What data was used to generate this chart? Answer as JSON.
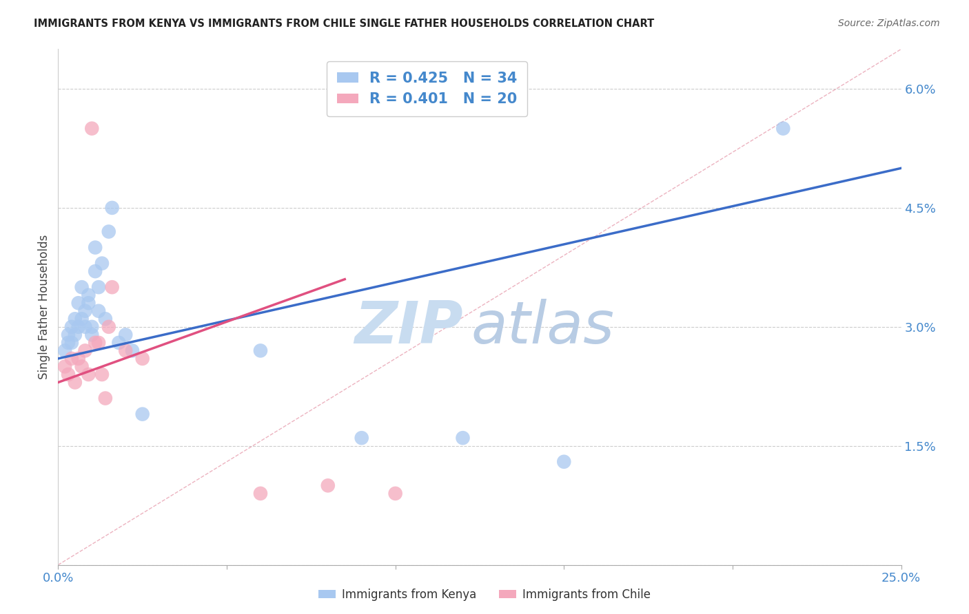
{
  "title": "IMMIGRANTS FROM KENYA VS IMMIGRANTS FROM CHILE SINGLE FATHER HOUSEHOLDS CORRELATION CHART",
  "source": "Source: ZipAtlas.com",
  "ylabel": "Single Father Households",
  "legend_kenya": "Immigrants from Kenya",
  "legend_chile": "Immigrants from Chile",
  "R_kenya": 0.425,
  "N_kenya": 34,
  "R_chile": 0.401,
  "N_chile": 20,
  "xlim": [
    0.0,
    0.25
  ],
  "ylim": [
    0.0,
    0.065
  ],
  "xticks": [
    0.0,
    0.05,
    0.1,
    0.15,
    0.2,
    0.25
  ],
  "xtick_labels": [
    "0.0%",
    "",
    "",
    "",
    "",
    "25.0%"
  ],
  "yticks": [
    0.0,
    0.015,
    0.03,
    0.045,
    0.06
  ],
  "ytick_labels": [
    "",
    "1.5%",
    "3.0%",
    "4.5%",
    "6.0%"
  ],
  "color_kenya": "#A8C8F0",
  "color_chile": "#F4A8BC",
  "line_color_kenya": "#3B6CC8",
  "line_color_chile": "#E05080",
  "tick_color": "#4488CC",
  "watermark_zip": "ZIP",
  "watermark_atlas": "atlas",
  "watermark_color": "#C8DCF0",
  "kenya_x": [
    0.002,
    0.003,
    0.003,
    0.004,
    0.004,
    0.005,
    0.005,
    0.006,
    0.006,
    0.007,
    0.007,
    0.008,
    0.008,
    0.009,
    0.009,
    0.01,
    0.01,
    0.011,
    0.011,
    0.012,
    0.012,
    0.013,
    0.014,
    0.015,
    0.016,
    0.018,
    0.02,
    0.022,
    0.025,
    0.06,
    0.09,
    0.12,
    0.15,
    0.215
  ],
  "kenya_y": [
    0.027,
    0.028,
    0.029,
    0.028,
    0.03,
    0.029,
    0.031,
    0.033,
    0.03,
    0.031,
    0.035,
    0.03,
    0.032,
    0.033,
    0.034,
    0.029,
    0.03,
    0.037,
    0.04,
    0.032,
    0.035,
    0.038,
    0.031,
    0.042,
    0.045,
    0.028,
    0.029,
    0.027,
    0.019,
    0.027,
    0.016,
    0.016,
    0.013,
    0.055
  ],
  "chile_x": [
    0.002,
    0.003,
    0.004,
    0.005,
    0.006,
    0.007,
    0.008,
    0.009,
    0.01,
    0.011,
    0.012,
    0.013,
    0.014,
    0.015,
    0.016,
    0.02,
    0.025,
    0.06,
    0.08,
    0.1
  ],
  "chile_y": [
    0.025,
    0.024,
    0.026,
    0.023,
    0.026,
    0.025,
    0.027,
    0.024,
    0.055,
    0.028,
    0.028,
    0.024,
    0.021,
    0.03,
    0.035,
    0.027,
    0.026,
    0.009,
    0.01,
    0.009
  ],
  "kenya_line_x": [
    0.0,
    0.25
  ],
  "kenya_line_y": [
    0.026,
    0.05
  ],
  "chile_line_x": [
    0.0,
    0.085
  ],
  "chile_line_y": [
    0.023,
    0.036
  ]
}
